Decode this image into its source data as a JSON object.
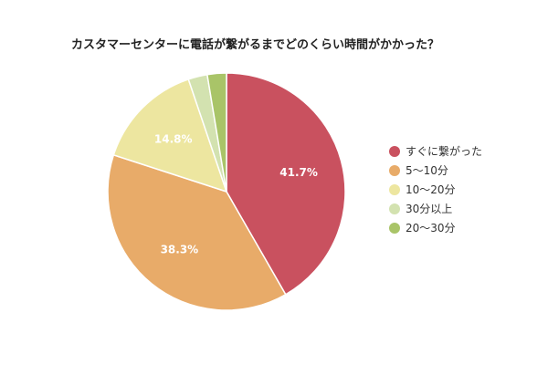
{
  "chart_data": {
    "type": "pie",
    "title": "カスタマーセンターに電話が繋がるまでどのくらい時間がかかった？",
    "categories": [
      "すぐに繋がった",
      "5〜10分",
      "10〜20分",
      "30分以上",
      "20〜30分"
    ],
    "values": [
      41.7,
      38.3,
      14.8,
      2.6,
      2.6
    ],
    "data_labels": [
      "41.7%",
      "38.3%",
      "14.8%",
      "",
      ""
    ],
    "colors": [
      "#c9515f",
      "#e8ab69",
      "#ede6a0",
      "#d3e2b0",
      "#a9c468"
    ],
    "legend_position": "right"
  }
}
